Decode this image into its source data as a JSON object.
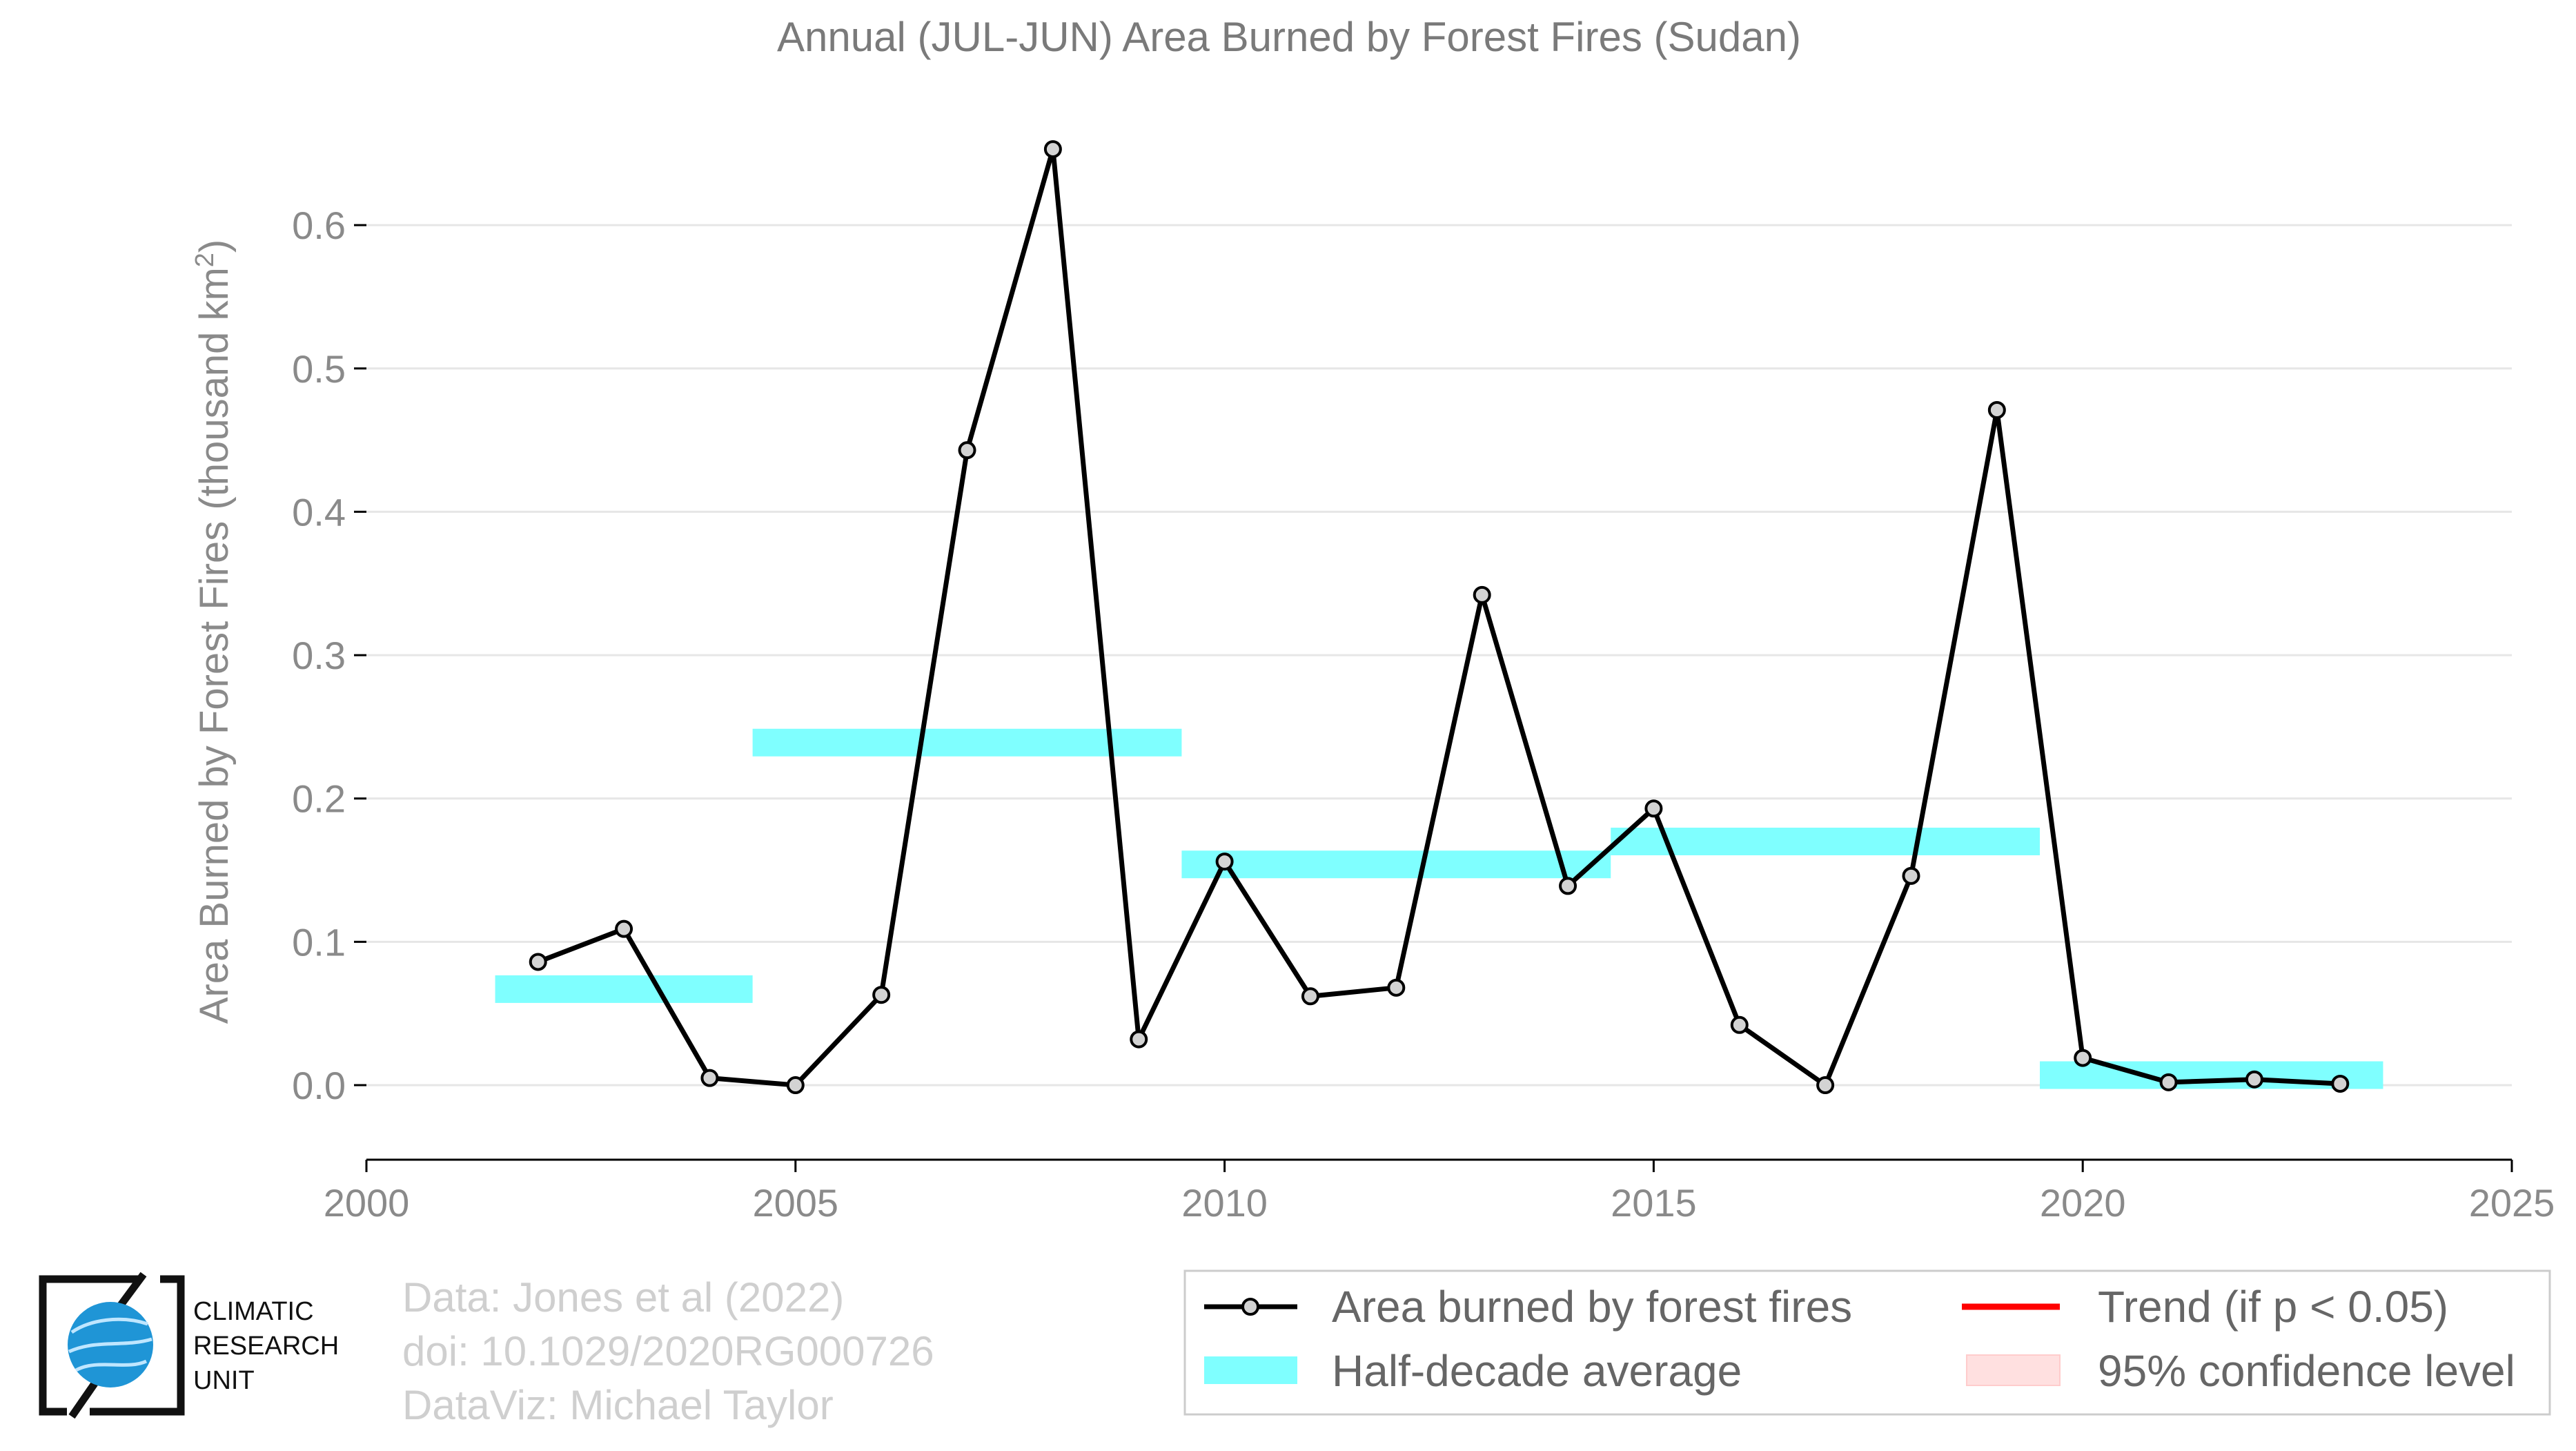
{
  "chart_data": {
    "type": "line",
    "title": "Annual (JUL-JUN) Area Burned by Forest Fires (Sudan)",
    "ylabel_main": "Area Burned by Forest Fires (thousand km",
    "ylabel_sup": "2",
    "ylabel_tail": ")",
    "xlim": [
      2000,
      2025
    ],
    "ylim": [
      -0.052,
      0.68
    ],
    "xticks": [
      2000,
      2005,
      2010,
      2015,
      2020,
      2025
    ],
    "yticks": [
      0.0,
      0.1,
      0.2,
      0.3,
      0.4,
      0.5,
      0.6
    ],
    "ytick_labels": [
      "0.0",
      "0.1",
      "0.2",
      "0.3",
      "0.4",
      "0.5",
      "0.6"
    ],
    "grid": "horizontal",
    "series": [
      {
        "name": "Area burned by forest fires",
        "x": [
          2002,
          2003,
          2004,
          2005,
          2006,
          2007,
          2008,
          2009,
          2010,
          2011,
          2012,
          2013,
          2014,
          2015,
          2016,
          2017,
          2018,
          2019,
          2020,
          2021,
          2022,
          2023
        ],
        "y": [
          0.086,
          0.109,
          0.005,
          0.0,
          0.063,
          0.443,
          0.653,
          0.032,
          0.156,
          0.062,
          0.068,
          0.342,
          0.139,
          0.193,
          0.042,
          0.0,
          0.146,
          0.471,
          0.019,
          0.002,
          0.004,
          0.001
        ],
        "color": "#000000"
      }
    ],
    "half_decade_averages": [
      {
        "x_start": 2001.5,
        "x_end": 2004.5,
        "value": 0.067
      },
      {
        "x_start": 2004.5,
        "x_end": 2009.5,
        "value": 0.239
      },
      {
        "x_start": 2009.5,
        "x_end": 2014.5,
        "value": 0.154
      },
      {
        "x_start": 2014.5,
        "x_end": 2019.5,
        "value": 0.17
      },
      {
        "x_start": 2019.5,
        "x_end": 2023.5,
        "value": 0.007
      }
    ],
    "band_color": "#7fffff",
    "legend": {
      "placement": "bottom-right",
      "entries": [
        {
          "label": "Area burned by forest fires",
          "kind": "line-marker",
          "color": "#000000"
        },
        {
          "label": "Trend (if p < 0.05)",
          "kind": "line",
          "color": "#ff0000"
        },
        {
          "label": "Half-decade average",
          "kind": "band",
          "color": "#7fffff"
        },
        {
          "label": "95% confidence level",
          "kind": "band",
          "color": "#ffe0e0"
        }
      ]
    }
  },
  "credits": {
    "line1": "Data: Jones et al (2022)",
    "line2": "doi: 10.1029/2020RG000726",
    "line3": "DataViz: Michael Taylor"
  },
  "logo": {
    "line1": "CLIMATIC",
    "line2": "RESEARCH",
    "line3": "UNIT"
  },
  "colors": {
    "axis": "#000000",
    "grid": "#e6e6e6",
    "marker_fill": "#d3d3d3",
    "logo_blue": "#1f95d6"
  }
}
